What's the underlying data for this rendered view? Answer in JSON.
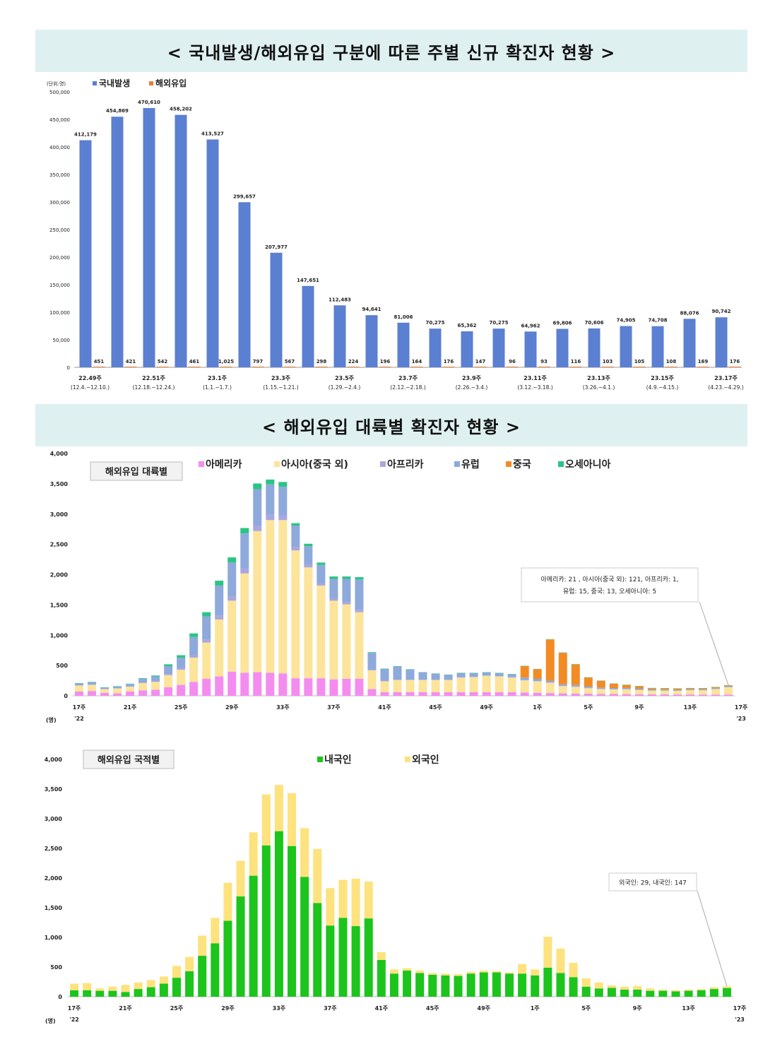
{
  "title1": "< 국내발생/해외유입 구분에 따른 주별 신규 확진자 현황 >",
  "title2": "< 해외유입 대륙별 확진자 현황 >",
  "chart_data": [
    {
      "type": "bar",
      "unit_label": "(단위:명)",
      "y_ticks": [
        "0",
        "50,000",
        "100,000",
        "150,000",
        "200,000",
        "250,000",
        "300,000",
        "350,000",
        "400,000",
        "450,000",
        "500,000"
      ],
      "ylim": [
        0,
        500000
      ],
      "series": [
        {
          "name": "국내발생",
          "color": "#5b7fd1",
          "values": [
            412179,
            454869,
            470610,
            458202,
            413527,
            299657,
            207977,
            147651,
            112483,
            94641,
            81006,
            70275,
            65362,
            70275,
            64962,
            69806,
            70606,
            74905,
            74708,
            88076,
            90742
          ],
          "labels": [
            "412,179",
            "454,869",
            "470,610",
            "458,202",
            "413,527",
            "299,657",
            "207,977",
            "147,651",
            "112,483",
            "94,641",
            "81,006",
            "70,275",
            "65,362",
            "70,275",
            "64,962",
            "69,806",
            "70,606",
            "74,905",
            "74,708",
            "88,076",
            "90,742"
          ]
        },
        {
          "name": "해외유입",
          "color": "#ed7d31",
          "values": [
            451,
            421,
            542,
            461,
            1025,
            797,
            567,
            298,
            224,
            196,
            164,
            176,
            147,
            96,
            93,
            116,
            103,
            105,
            108,
            169,
            176
          ],
          "labels": [
            "451",
            "421",
            "542",
            "461",
            "1,025",
            "797",
            "567",
            "298",
            "224",
            "196",
            "164",
            "176",
            "147",
            "96",
            "93",
            "116",
            "103",
            "105",
            "108",
            "169",
            "176"
          ]
        }
      ],
      "x_labels": [
        {
          "idx": 0,
          "week": "22.49주",
          "range": "(12.4.~12.10.)"
        },
        {
          "idx": 2,
          "week": "22.51주",
          "range": "(12.18.~12.24.)"
        },
        {
          "idx": 4,
          "week": "23.1주",
          "range": "(1.1.~1.7.)"
        },
        {
          "idx": 6,
          "week": "23.3주",
          "range": "(1.15.~1.21.)"
        },
        {
          "idx": 8,
          "week": "23.5주",
          "range": "(1.29.~2.4.)"
        },
        {
          "idx": 10,
          "week": "23.7주",
          "range": "(2.12.~2.18.)"
        },
        {
          "idx": 12,
          "week": "23.9주",
          "range": "(2.26.~3.4.)"
        },
        {
          "idx": 14,
          "week": "23.11주",
          "range": "(3.12.~3.18.)"
        },
        {
          "idx": 16,
          "week": "23.13주",
          "range": "(3.26.~4.1.)"
        },
        {
          "idx": 18,
          "week": "23.15주",
          "range": "(4.9.~4.15.)"
        },
        {
          "idx": 20,
          "week": "23.17주",
          "range": "(4.23.~4.29.)"
        }
      ]
    },
    {
      "type": "stacked-bar",
      "box_label": "해외유입 대륙별",
      "ylim": [
        0,
        4000
      ],
      "y_ticks": [
        "0",
        "500",
        "1,000",
        "1,500",
        "2,000",
        "2,500",
        "3,000",
        "3,500",
        "4,000"
      ],
      "unit_label": "(명)",
      "series": [
        {
          "name": "아메리카",
          "color": "#f48cf0",
          "values": [
            70,
            80,
            50,
            40,
            70,
            90,
            100,
            140,
            180,
            230,
            280,
            320,
            400,
            380,
            390,
            380,
            370,
            290,
            290,
            290,
            270,
            280,
            280,
            110,
            60,
            60,
            60,
            60,
            60,
            60,
            60,
            60,
            60,
            60,
            60,
            55,
            50,
            45,
            40,
            38,
            35,
            32,
            30,
            28,
            26,
            25,
            24,
            22,
            22,
            21,
            21,
            21
          ]
        },
        {
          "name": "아시아(중국 외)",
          "color": "#fde49b",
          "values": [
            100,
            100,
            60,
            80,
            80,
            120,
            130,
            200,
            250,
            400,
            600,
            940,
            1170,
            1640,
            2330,
            2520,
            2530,
            2110,
            1830,
            1530,
            1300,
            1230,
            1100,
            310,
            180,
            200,
            200,
            200,
            200,
            200,
            240,
            250,
            270,
            260,
            240,
            200,
            190,
            170,
            120,
            110,
            90,
            80,
            75,
            80,
            70,
            60,
            60,
            60,
            70,
            70,
            90,
            121
          ]
        },
        {
          "name": "아프리카",
          "color": "#a9a7e0",
          "values": [
            5,
            5,
            5,
            5,
            5,
            10,
            10,
            20,
            30,
            40,
            50,
            60,
            70,
            80,
            90,
            90,
            80,
            60,
            50,
            40,
            40,
            40,
            40,
            10,
            5,
            5,
            5,
            5,
            5,
            5,
            5,
            5,
            5,
            5,
            5,
            5,
            5,
            5,
            5,
            5,
            5,
            5,
            3,
            3,
            3,
            3,
            2,
            2,
            2,
            2,
            1,
            1
          ]
        },
        {
          "name": "유럽",
          "color": "#8ea9db",
          "values": [
            30,
            40,
            20,
            30,
            40,
            60,
            80,
            130,
            170,
            300,
            380,
            500,
            560,
            580,
            600,
            500,
            470,
            350,
            300,
            300,
            320,
            380,
            500,
            280,
            200,
            220,
            170,
            120,
            100,
            80,
            70,
            60,
            50,
            50,
            50,
            40,
            35,
            30,
            25,
            25,
            22,
            20,
            20,
            18,
            18,
            17,
            16,
            15,
            15,
            15,
            15,
            15
          ]
        },
        {
          "name": "중국",
          "color": "#f38b24",
          "values": [
            0,
            0,
            0,
            0,
            0,
            0,
            0,
            0,
            0,
            0,
            0,
            0,
            0,
            0,
            0,
            0,
            0,
            0,
            0,
            0,
            0,
            0,
            0,
            0,
            0,
            0,
            0,
            0,
            0,
            0,
            0,
            0,
            0,
            0,
            0,
            190,
            160,
            680,
            520,
            340,
            150,
            110,
            70,
            50,
            40,
            20,
            20,
            20,
            15,
            15,
            14,
            13
          ]
        },
        {
          "name": "오세아니아",
          "color": "#2bc486",
          "values": [
            5,
            5,
            5,
            5,
            5,
            10,
            15,
            30,
            40,
            60,
            70,
            80,
            85,
            90,
            95,
            80,
            80,
            40,
            40,
            40,
            40,
            40,
            40,
            10,
            5,
            5,
            5,
            5,
            5,
            5,
            5,
            5,
            5,
            5,
            5,
            5,
            5,
            5,
            5,
            5,
            5,
            5,
            5,
            5,
            5,
            5,
            5,
            5,
            5,
            5,
            5,
            5
          ]
        }
      ],
      "x_ticks": [
        {
          "idx": 0,
          "label": "17주",
          "year": "'22"
        },
        {
          "idx": 4,
          "label": "21주"
        },
        {
          "idx": 8,
          "label": "25주"
        },
        {
          "idx": 12,
          "label": "29주"
        },
        {
          "idx": 16,
          "label": "33주"
        },
        {
          "idx": 20,
          "label": "37주"
        },
        {
          "idx": 24,
          "label": "41주"
        },
        {
          "idx": 28,
          "label": "45주"
        },
        {
          "idx": 32,
          "label": "49주"
        },
        {
          "idx": 36,
          "label": "1주"
        },
        {
          "idx": 40,
          "label": "5주"
        },
        {
          "idx": 44,
          "label": "9주"
        },
        {
          "idx": 48,
          "label": "13주"
        },
        {
          "idx": 52,
          "label": "17주",
          "year": "'23"
        }
      ],
      "annotation": [
        "아메리카: 21 , 아시아(중국 외): 121, 아프리카: 1,",
        "유럽: 15, 중국: 13, 오세아니아: 5"
      ]
    },
    {
      "type": "stacked-bar",
      "box_label": "해외유입 국적별",
      "ylim": [
        0,
        4000
      ],
      "y_ticks": [
        "0",
        "500",
        "1,000",
        "1,500",
        "2,000",
        "2,500",
        "3,000",
        "3,500",
        "4,000"
      ],
      "unit_label": "(명)",
      "series": [
        {
          "name": "내국인",
          "color": "#1cc41c",
          "values": [
            110,
            110,
            100,
            100,
            80,
            130,
            160,
            220,
            320,
            430,
            690,
            900,
            1280,
            1690,
            2040,
            2550,
            2790,
            2540,
            2020,
            1580,
            1200,
            1330,
            1190,
            1320,
            620,
            390,
            440,
            400,
            370,
            360,
            350,
            390,
            410,
            410,
            390,
            390,
            360,
            490,
            400,
            330,
            170,
            140,
            150,
            120,
            120,
            100,
            100,
            90,
            100,
            110,
            130,
            147
          ]
        },
        {
          "name": "외국인",
          "color": "#fde27e",
          "values": [
            110,
            120,
            40,
            70,
            120,
            110,
            120,
            120,
            200,
            240,
            340,
            430,
            640,
            600,
            730,
            860,
            780,
            890,
            820,
            910,
            630,
            640,
            800,
            620,
            130,
            70,
            40,
            40,
            30,
            30,
            30,
            30,
            30,
            20,
            20,
            160,
            100,
            520,
            410,
            240,
            140,
            100,
            40,
            50,
            60,
            40,
            20,
            20,
            20,
            20,
            30,
            29
          ]
        }
      ],
      "x_ticks": [
        {
          "idx": 0,
          "label": "17주",
          "year": "'22"
        },
        {
          "idx": 4,
          "label": "21주"
        },
        {
          "idx": 8,
          "label": "25주"
        },
        {
          "idx": 12,
          "label": "29주"
        },
        {
          "idx": 16,
          "label": "33주"
        },
        {
          "idx": 20,
          "label": "37주"
        },
        {
          "idx": 24,
          "label": "41주"
        },
        {
          "idx": 28,
          "label": "45주"
        },
        {
          "idx": 32,
          "label": "49주"
        },
        {
          "idx": 36,
          "label": "1주"
        },
        {
          "idx": 40,
          "label": "5주"
        },
        {
          "idx": 44,
          "label": "9주"
        },
        {
          "idx": 48,
          "label": "13주"
        },
        {
          "idx": 52,
          "label": "17주",
          "year": "'23"
        }
      ],
      "annotation": [
        "외국인: 29, 내국인: 147"
      ]
    }
  ]
}
